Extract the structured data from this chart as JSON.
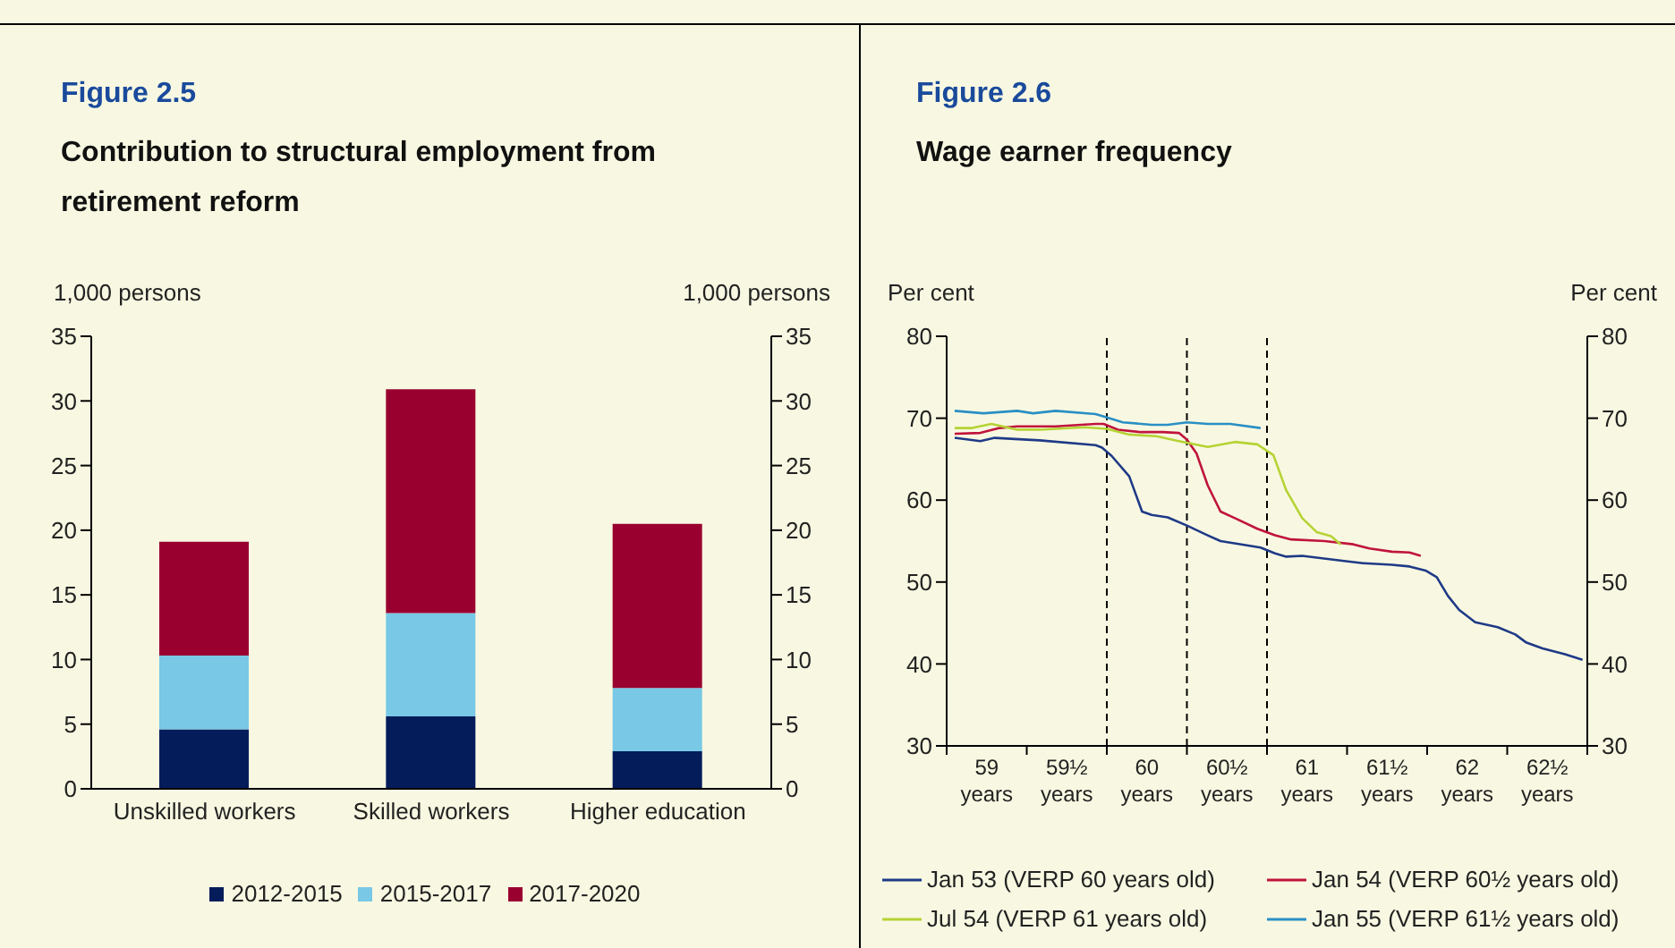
{
  "chart_data": [
    {
      "type": "bar",
      "title": "Figure 2.5",
      "subtitle": "Contribution to structural employment from retirement reform",
      "ylabel": "1,000 persons",
      "y2label": "1,000 persons",
      "categories": [
        "Unskilled workers",
        "Skilled workers",
        "Higher education"
      ],
      "stacked": true,
      "series": [
        {
          "name": "2012-2015",
          "color": "#041c5a",
          "values": [
            4.6,
            5.6,
            2.9
          ]
        },
        {
          "name": "2015-2017",
          "color": "#78c8e6",
          "values": [
            5.7,
            8.0,
            4.9
          ]
        },
        {
          "name": "2017-2020",
          "color": "#990030",
          "values": [
            8.8,
            17.3,
            12.7
          ]
        }
      ],
      "ylim": [
        0,
        35
      ],
      "yticks": [
        0,
        5,
        10,
        15,
        20,
        25,
        30,
        35
      ],
      "y2lim": [
        0,
        35
      ],
      "y2ticks": [
        0,
        5,
        10,
        15,
        20,
        25,
        30,
        35
      ],
      "legend": "bottom",
      "grid": false
    },
    {
      "type": "line",
      "title": "Figure 2.6",
      "subtitle": "Wage earner frequency",
      "ylabel": "Per cent",
      "y2label": "Per cent",
      "marker": "none",
      "legend": "bottom",
      "grid": false,
      "xlim": [
        58.75,
        62.75
      ],
      "xticks": [
        {
          "value": 58.75,
          "label": null
        },
        {
          "value": 59,
          "label": "59 years"
        },
        {
          "value": 59.25,
          "label": null
        },
        {
          "value": 59.5,
          "label": "59½ years"
        },
        {
          "value": 59.75,
          "label": null
        },
        {
          "value": 60,
          "label": "60 years"
        },
        {
          "value": 60.25,
          "label": null
        },
        {
          "value": 60.5,
          "label": "60½ years"
        },
        {
          "value": 60.75,
          "label": null
        },
        {
          "value": 61,
          "label": "61 years"
        },
        {
          "value": 61.25,
          "label": null
        },
        {
          "value": 61.5,
          "label": "61½ years"
        },
        {
          "value": 61.75,
          "label": null
        },
        {
          "value": 62,
          "label": "62 years"
        },
        {
          "value": 62.25,
          "label": null
        },
        {
          "value": 62.5,
          "label": "62½ years"
        },
        {
          "value": 62.75,
          "label": null
        }
      ],
      "ylim": [
        30,
        80
      ],
      "yticks": [
        30,
        40,
        50,
        60,
        70,
        80
      ],
      "y2lim": [
        30,
        80
      ],
      "y2ticks": [
        30,
        40,
        50,
        60,
        70,
        80
      ],
      "ref_lines": [
        {
          "axis": "x",
          "value": 59.75,
          "line_style": "dashed",
          "color": "#000000"
        },
        {
          "axis": "x",
          "value": 60.25,
          "line_style": "dashed",
          "color": "#000000"
        },
        {
          "axis": "x",
          "value": 60.75,
          "line_style": "dashed",
          "color": "#000000"
        }
      ],
      "series": [
        {
          "name": "Jan 53 (VERP 60 years old)",
          "color": "#1f3a87",
          "x": [
            58.8,
            58.96,
            59.05,
            59.33,
            59.68,
            59.72,
            59.78,
            59.89,
            59.97,
            60.03,
            60.13,
            60.25,
            60.38,
            60.46,
            60.59,
            60.71,
            60.8,
            60.87,
            60.97,
            61.22,
            61.35,
            61.53,
            61.64,
            61.74,
            61.81,
            61.88,
            61.95,
            62.05,
            62.19,
            62.3,
            62.37,
            62.47,
            62.61,
            62.72
          ],
          "values": [
            67.6,
            67.2,
            67.6,
            67.3,
            66.7,
            66.4,
            65.4,
            62.9,
            58.6,
            58.2,
            57.9,
            56.9,
            55.7,
            55.0,
            54.6,
            54.2,
            53.5,
            53.1,
            53.2,
            52.6,
            52.3,
            52.1,
            51.9,
            51.4,
            50.6,
            48.3,
            46.6,
            45.1,
            44.5,
            43.6,
            42.6,
            41.9,
            41.2,
            40.5
          ]
        },
        {
          "name": "Jan 54 (VERP 60½ years old)",
          "color": "#c0143c",
          "x": [
            58.8,
            58.96,
            59.08,
            59.19,
            59.43,
            59.68,
            59.73,
            59.82,
            59.96,
            60.1,
            60.2,
            60.25,
            60.31,
            60.38,
            60.46,
            60.55,
            60.69,
            60.8,
            60.9,
            61.11,
            61.29,
            61.39,
            61.53,
            61.64,
            61.71
          ],
          "values": [
            68.1,
            68.2,
            68.8,
            69.0,
            69.0,
            69.3,
            69.3,
            68.6,
            68.3,
            68.3,
            68.2,
            67.4,
            65.7,
            61.8,
            58.6,
            57.8,
            56.5,
            55.7,
            55.2,
            55.0,
            54.6,
            54.1,
            53.7,
            53.6,
            53.2
          ]
        },
        {
          "name": "Jul 54 (VERP 61 years old)",
          "color": "#b5d334",
          "x": [
            58.8,
            58.91,
            59.03,
            59.19,
            59.33,
            59.61,
            59.75,
            59.89,
            60.06,
            60.2,
            60.38,
            60.55,
            60.69,
            60.79,
            60.87,
            60.97,
            61.06,
            61.15,
            61.21
          ],
          "values": [
            68.8,
            68.8,
            69.3,
            68.6,
            68.6,
            68.9,
            68.7,
            68.0,
            67.8,
            67.2,
            66.5,
            67.1,
            66.8,
            65.5,
            61.2,
            57.8,
            56.1,
            55.6,
            54.6
          ]
        },
        {
          "name": "Jan 55 (VERP 61½ years old)",
          "color": "#2a8fc4",
          "x": [
            58.8,
            58.98,
            59.19,
            59.29,
            59.43,
            59.68,
            59.75,
            59.85,
            60.03,
            60.13,
            60.25,
            60.38,
            60.52,
            60.71
          ],
          "values": [
            70.9,
            70.6,
            70.9,
            70.6,
            70.9,
            70.5,
            70.1,
            69.5,
            69.2,
            69.2,
            69.5,
            69.3,
            69.3,
            68.8
          ]
        }
      ]
    }
  ]
}
